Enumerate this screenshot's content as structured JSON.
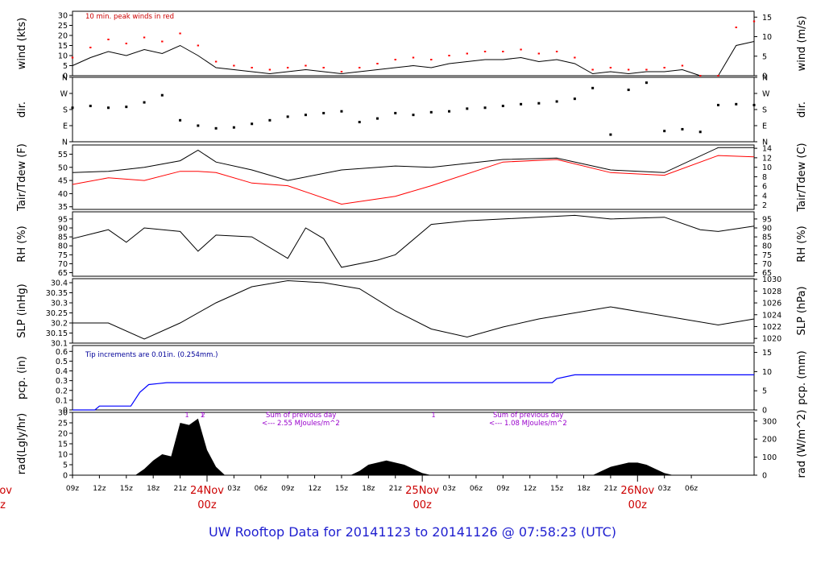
{
  "footer": {
    "title": "UW Rooftop Data for 20141123  to  20141126 @ 07:58:23  (UTC)",
    "title_color": "#1f1fd0"
  },
  "colors": {
    "frame": "#000000",
    "series_black": "#000000",
    "series_red": "#ff0000",
    "series_blue": "#0000ff",
    "annotation_purple": "#9900cc",
    "annotation_red": "#cc0000",
    "annotation_navy": "#000099"
  },
  "chart_data": [
    {
      "type": "line",
      "title": "",
      "ylabel": "wind (kts)",
      "ylabel_right": "wind (m/s)",
      "ylim": [
        0,
        32
      ],
      "yticks": [
        0,
        5,
        10,
        15,
        20,
        25,
        30
      ],
      "ylim_right": [
        0,
        16.5
      ],
      "yticks_right": [
        0,
        5,
        10,
        15
      ],
      "annotation": "10 min. peak winds in red",
      "series": [
        {
          "name": "wind speed",
          "x": [
            0,
            2,
            4,
            6,
            8,
            10,
            12,
            14,
            16,
            18,
            20,
            22,
            24,
            26,
            28,
            30,
            32,
            34,
            36,
            38,
            40,
            42,
            44,
            46,
            48,
            50,
            52,
            54,
            56,
            58,
            60,
            62,
            64,
            66,
            68,
            70,
            72,
            74,
            76
          ],
          "y": [
            5,
            9,
            12,
            10,
            13,
            11,
            15,
            10,
            4,
            3,
            2,
            1,
            2,
            3,
            2,
            1,
            2,
            3,
            4,
            5,
            4,
            6,
            7,
            8,
            8,
            9,
            7,
            8,
            6,
            1,
            2,
            1,
            2,
            2,
            3,
            0,
            0,
            15,
            17
          ]
        },
        {
          "name": "10 min. peak",
          "x": [
            0,
            2,
            4,
            6,
            8,
            10,
            12,
            14,
            16,
            18,
            20,
            22,
            24,
            26,
            28,
            30,
            32,
            34,
            36,
            38,
            40,
            42,
            44,
            46,
            48,
            50,
            52,
            54,
            56,
            58,
            60,
            62,
            64,
            66,
            68,
            70,
            72,
            74,
            76
          ],
          "y": [
            9,
            14,
            18,
            16,
            19,
            17,
            21,
            15,
            7,
            5,
            4,
            3,
            4,
            5,
            4,
            2,
            4,
            6,
            8,
            9,
            8,
            10,
            11,
            12,
            12,
            13,
            11,
            12,
            9,
            3,
            4,
            3,
            3,
            4,
            5,
            0,
            0,
            24,
            27
          ]
        }
      ]
    },
    {
      "type": "scatter",
      "title": "",
      "ylabel": "dir.",
      "ylabel_right": "dir.",
      "ylim": [
        0,
        360
      ],
      "ytick_values": [
        0,
        90,
        180,
        270,
        360
      ],
      "ytick_labels": [
        "N",
        "E",
        "S",
        "W",
        "N"
      ],
      "series": [
        {
          "name": "wind direction",
          "x": [
            0,
            2,
            4,
            6,
            8,
            10,
            12,
            14,
            16,
            18,
            20,
            22,
            24,
            26,
            28,
            30,
            32,
            34,
            36,
            38,
            40,
            42,
            44,
            46,
            48,
            50,
            52,
            54,
            56,
            58,
            60,
            62,
            64,
            66,
            68,
            70,
            72,
            74,
            76
          ],
          "y": [
            190,
            200,
            190,
            195,
            220,
            260,
            120,
            90,
            75,
            80,
            100,
            120,
            140,
            150,
            160,
            170,
            110,
            130,
            160,
            150,
            165,
            170,
            185,
            190,
            200,
            210,
            215,
            225,
            240,
            300,
            40,
            290,
            330,
            60,
            70,
            55,
            205,
            210,
            205
          ]
        }
      ]
    },
    {
      "type": "line",
      "title": "",
      "ylabel": "Tair/Tdew (F)",
      "ylabel_right": "Tair/Tdew (C)",
      "ylim": [
        34,
        58.5
      ],
      "yticks": [
        35,
        40,
        45,
        50,
        55
      ],
      "ylim_right": [
        1.1,
        14.7
      ],
      "yticks_right": [
        2,
        4,
        6,
        8,
        10,
        12,
        14
      ],
      "series": [
        {
          "name": "Tair",
          "x": [
            0,
            4,
            8,
            12,
            14,
            16,
            20,
            24,
            30,
            36,
            40,
            48,
            54,
            60,
            66,
            72,
            76
          ],
          "y": [
            48,
            48.5,
            50,
            52.5,
            56.5,
            52,
            49,
            45,
            49,
            50.5,
            50,
            53,
            53.5,
            49,
            48,
            57.5,
            57.5
          ]
        },
        {
          "name": "Tdew",
          "x": [
            0,
            4,
            8,
            12,
            14,
            16,
            20,
            24,
            30,
            36,
            40,
            48,
            54,
            60,
            66,
            72,
            76
          ],
          "y": [
            43.5,
            46,
            45,
            48.5,
            48.5,
            48,
            44,
            43,
            36,
            39,
            43,
            52,
            53,
            48,
            47,
            54.5,
            54
          ]
        }
      ]
    },
    {
      "type": "line",
      "title": "",
      "ylabel": "RH (%)",
      "ylabel_right": "RH (%)",
      "ylim": [
        63,
        99
      ],
      "yticks": [
        65,
        70,
        75,
        80,
        85,
        90,
        95
      ],
      "series": [
        {
          "name": "RH",
          "x": [
            0,
            4,
            6,
            8,
            12,
            14,
            16,
            20,
            24,
            26,
            28,
            30,
            34,
            36,
            40,
            44,
            48,
            56,
            60,
            66,
            70,
            72,
            76
          ],
          "y": [
            84,
            89,
            82,
            90,
            88,
            77,
            86,
            85,
            73,
            90,
            84,
            68,
            72,
            75,
            92,
            94,
            95,
            97,
            95,
            96,
            89,
            88,
            91
          ]
        }
      ]
    },
    {
      "type": "line",
      "title": "",
      "ylabel": "SLP (inHg)",
      "ylabel_right": "SLP (hPa)",
      "ylim": [
        30.1,
        30.42
      ],
      "yticks": [
        30.1,
        30.15,
        30.2,
        30.25,
        30.3,
        30.35,
        30.4
      ],
      "ylim_right": [
        1019.2,
        1030.1
      ],
      "yticks_right": [
        1020,
        1022,
        1024,
        1026,
        1028,
        1030
      ],
      "series": [
        {
          "name": "SLP",
          "x": [
            0,
            4,
            8,
            12,
            16,
            20,
            24,
            28,
            32,
            36,
            40,
            44,
            48,
            52,
            56,
            60,
            64,
            68,
            72,
            76
          ],
          "y": [
            30.2,
            30.2,
            30.12,
            30.2,
            30.3,
            30.38,
            30.41,
            30.4,
            30.37,
            30.26,
            30.17,
            30.13,
            30.18,
            30.22,
            30.25,
            30.28,
            30.25,
            30.22,
            30.19,
            30.22
          ]
        }
      ]
    },
    {
      "type": "line",
      "title": "",
      "ylabel": "pcp. (in)",
      "ylabel_right": "pcp. (mm)",
      "ylim": [
        0,
        0.66
      ],
      "yticks": [
        0,
        0.1,
        0.2,
        0.3,
        0.4,
        0.5,
        0.6
      ],
      "ylim_right": [
        0,
        16.8
      ],
      "yticks_right": [
        0,
        5,
        10,
        15
      ],
      "annotation": "Tip increments are 0.01in. (0.254mm.)",
      "series": [
        {
          "name": "precipitation",
          "x": [
            0,
            2.5,
            3,
            6.5,
            7.5,
            8.5,
            9.5,
            10.5,
            53.5,
            54,
            56,
            76
          ],
          "y": [
            0,
            0,
            0.04,
            0.04,
            0.18,
            0.26,
            0.27,
            0.28,
            0.28,
            0.32,
            0.36,
            0.36
          ]
        }
      ]
    },
    {
      "type": "area",
      "title": "",
      "ylabel": "rad(Lgly/hr)",
      "ylabel_right": "rad (W/m^2)",
      "ylim": [
        0,
        30
      ],
      "yticks": [
        0,
        5,
        10,
        15,
        20,
        25,
        30
      ],
      "ylim_right": [
        0,
        348
      ],
      "yticks_right": [
        0,
        100,
        200,
        300
      ],
      "annotations": [
        "Sum of previous day",
        "<--- 2.55 MJoules/m^2",
        "Sum of previous day",
        "<--- 1.08 MJoules/m^2"
      ],
      "peak_markers": [
        "1",
        "1",
        "2",
        "1"
      ],
      "series": [
        {
          "name": "radiation",
          "x": [
            7,
            8,
            9,
            10,
            11,
            12,
            13,
            14,
            15,
            16,
            17,
            31,
            32,
            33,
            34,
            35,
            36,
            37,
            38,
            39,
            40,
            58,
            59,
            60,
            61,
            62,
            63,
            64,
            65,
            66,
            67
          ],
          "y": [
            0,
            3,
            7,
            10,
            9,
            25,
            24,
            27,
            12,
            4,
            0,
            0,
            2,
            5,
            6,
            7,
            6,
            5,
            3,
            1,
            0,
            0,
            2,
            4,
            5,
            6,
            6,
            5,
            3,
            1,
            0
          ]
        }
      ]
    }
  ],
  "time_axis": {
    "xlim": [
      0,
      76
    ],
    "hour_ticks": [
      {
        "x": 0,
        "label": "09z"
      },
      {
        "x": 3,
        "label": "12z"
      },
      {
        "x": 6,
        "label": "15z"
      },
      {
        "x": 9,
        "label": "18z"
      },
      {
        "x": 12,
        "label": "21z"
      },
      {
        "x": 18,
        "label": "03z"
      },
      {
        "x": 21,
        "label": "06z"
      },
      {
        "x": 24,
        "label": "09z"
      },
      {
        "x": 27,
        "label": "12z"
      },
      {
        "x": 30,
        "label": "15z"
      },
      {
        "x": 33,
        "label": "18z"
      },
      {
        "x": 36,
        "label": "21z"
      },
      {
        "x": 42,
        "label": "03z"
      },
      {
        "x": 45,
        "label": "06z"
      },
      {
        "x": 48,
        "label": "09z"
      },
      {
        "x": 51,
        "label": "12z"
      },
      {
        "x": 54,
        "label": "15z"
      },
      {
        "x": 57,
        "label": "18z"
      },
      {
        "x": 60,
        "label": "21z"
      },
      {
        "x": 66,
        "label": "03z"
      },
      {
        "x": 69,
        "label": "06z"
      }
    ],
    "day_ticks": [
      {
        "x": 15,
        "label": "24Nov",
        "sub": "00z"
      },
      {
        "x": 39,
        "label": "25Nov",
        "sub": "00z"
      },
      {
        "x": 63,
        "label": "26Nov",
        "sub": "00z"
      }
    ],
    "left_cutoff": {
      "label": "ov",
      "sub": "z"
    }
  }
}
